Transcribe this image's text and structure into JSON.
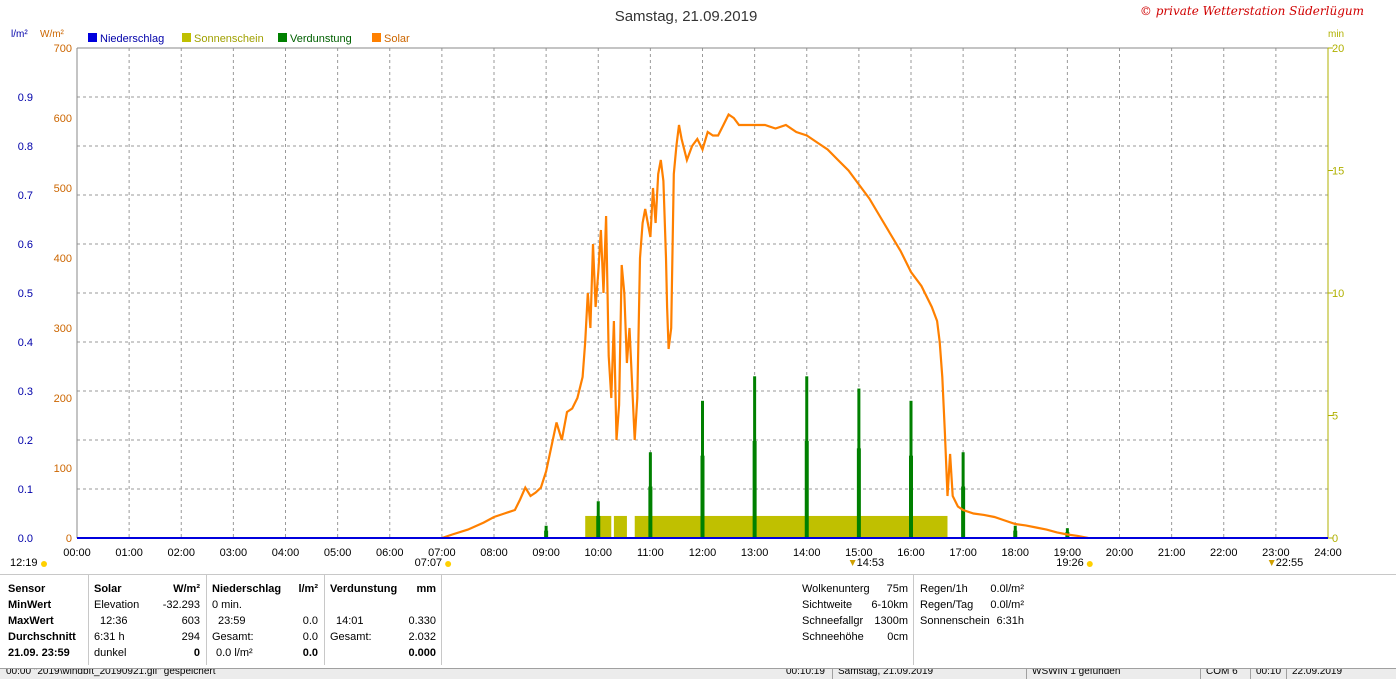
{
  "header": {
    "title": "Samstag, 21.09.2019",
    "copyright": "© private Wetterstation Süderlügum",
    "left_unit": "l/m²",
    "mid_unit": "W/m²",
    "right_unit": "min"
  },
  "legend": [
    {
      "label": "Niederschlag",
      "color": "#0000dd"
    },
    {
      "label": "Sonnenschein",
      "color": "#c0c000"
    },
    {
      "label": "Verdunstung",
      "color": "#008000"
    },
    {
      "label": "Solar",
      "color": "#ff8000"
    }
  ],
  "chart_data": {
    "type": "line",
    "title": "Samstag, 21.09.2019",
    "x_ticks": [
      "00:00",
      "01:00",
      "02:00",
      "03:00",
      "04:00",
      "05:00",
      "06:00",
      "07:00",
      "08:00",
      "09:00",
      "10:00",
      "11:00",
      "12:00",
      "13:00",
      "14:00",
      "15:00",
      "16:00",
      "17:00",
      "18:00",
      "19:00",
      "20:00",
      "21:00",
      "22:00",
      "23:00",
      "24:00"
    ],
    "xlim_hours": [
      0,
      24
    ],
    "y_left": {
      "unit": "l/m²",
      "ticks": [
        "0.0",
        "0.1",
        "0.2",
        "0.3",
        "0.4",
        "0.5",
        "0.6",
        "0.7",
        "0.8",
        "0.9"
      ],
      "range": [
        0,
        1.0
      ]
    },
    "y_solar": {
      "unit": "W/m²",
      "ticks": [
        "0",
        "100",
        "200",
        "300",
        "400",
        "500",
        "600",
        "700"
      ],
      "range": [
        0,
        700
      ]
    },
    "y_right": {
      "unit": "min",
      "ticks": [
        "0",
        "5",
        "10",
        "15",
        "20"
      ],
      "range": [
        0,
        20
      ]
    },
    "grid": true,
    "legend_position": "top-left",
    "solar_series": {
      "name": "Solar",
      "color": "#ff8000",
      "points": [
        [
          7.0,
          0
        ],
        [
          7.2,
          5
        ],
        [
          7.5,
          12
        ],
        [
          7.8,
          22
        ],
        [
          8.0,
          30
        ],
        [
          8.2,
          35
        ],
        [
          8.4,
          40
        ],
        [
          8.5,
          55
        ],
        [
          8.6,
          72
        ],
        [
          8.7,
          60
        ],
        [
          8.8,
          65
        ],
        [
          8.9,
          72
        ],
        [
          9.0,
          95
        ],
        [
          9.1,
          130
        ],
        [
          9.2,
          165
        ],
        [
          9.3,
          140
        ],
        [
          9.4,
          180
        ],
        [
          9.5,
          185
        ],
        [
          9.6,
          200
        ],
        [
          9.7,
          230
        ],
        [
          9.75,
          280
        ],
        [
          9.8,
          350
        ],
        [
          9.85,
          300
        ],
        [
          9.9,
          420
        ],
        [
          9.95,
          330
        ],
        [
          10.0,
          380
        ],
        [
          10.05,
          440
        ],
        [
          10.1,
          350
        ],
        [
          10.15,
          460
        ],
        [
          10.2,
          260
        ],
        [
          10.25,
          200
        ],
        [
          10.3,
          310
        ],
        [
          10.35,
          140
        ],
        [
          10.4,
          190
        ],
        [
          10.45,
          390
        ],
        [
          10.5,
          350
        ],
        [
          10.55,
          250
        ],
        [
          10.6,
          300
        ],
        [
          10.7,
          140
        ],
        [
          10.75,
          200
        ],
        [
          10.8,
          400
        ],
        [
          10.85,
          450
        ],
        [
          10.9,
          470
        ],
        [
          11.0,
          430
        ],
        [
          11.05,
          500
        ],
        [
          11.1,
          450
        ],
        [
          11.15,
          520
        ],
        [
          11.2,
          540
        ],
        [
          11.25,
          510
        ],
        [
          11.3,
          400
        ],
        [
          11.32,
          330
        ],
        [
          11.35,
          270
        ],
        [
          11.4,
          300
        ],
        [
          11.45,
          520
        ],
        [
          11.5,
          560
        ],
        [
          11.55,
          590
        ],
        [
          11.6,
          570
        ],
        [
          11.7,
          540
        ],
        [
          11.8,
          560
        ],
        [
          11.9,
          570
        ],
        [
          12.0,
          555
        ],
        [
          12.1,
          580
        ],
        [
          12.2,
          575
        ],
        [
          12.3,
          575
        ],
        [
          12.4,
          590
        ],
        [
          12.5,
          605
        ],
        [
          12.6,
          600
        ],
        [
          12.7,
          590
        ],
        [
          12.8,
          590
        ],
        [
          12.9,
          590
        ],
        [
          13.0,
          590
        ],
        [
          13.2,
          590
        ],
        [
          13.4,
          585
        ],
        [
          13.6,
          590
        ],
        [
          13.8,
          580
        ],
        [
          14.0,
          575
        ],
        [
          14.2,
          565
        ],
        [
          14.4,
          555
        ],
        [
          14.6,
          540
        ],
        [
          14.8,
          525
        ],
        [
          15.0,
          505
        ],
        [
          15.2,
          485
        ],
        [
          15.4,
          460
        ],
        [
          15.6,
          435
        ],
        [
          15.8,
          410
        ],
        [
          16.0,
          380
        ],
        [
          16.2,
          360
        ],
        [
          16.4,
          330
        ],
        [
          16.5,
          310
        ],
        [
          16.55,
          280
        ],
        [
          16.6,
          230
        ],
        [
          16.65,
          150
        ],
        [
          16.7,
          60
        ],
        [
          16.75,
          120
        ],
        [
          16.8,
          60
        ],
        [
          16.9,
          45
        ],
        [
          17.0,
          40
        ],
        [
          17.2,
          35
        ],
        [
          17.4,
          33
        ],
        [
          17.6,
          30
        ],
        [
          17.8,
          25
        ],
        [
          18.0,
          20
        ],
        [
          18.2,
          18
        ],
        [
          18.4,
          15
        ],
        [
          18.6,
          12
        ],
        [
          18.8,
          8
        ],
        [
          19.0,
          5
        ],
        [
          19.2,
          3
        ],
        [
          19.4,
          0
        ]
      ]
    },
    "sunshine_spans": [
      {
        "from": 9.75,
        "to": 10.25
      },
      {
        "from": 10.3,
        "to": 10.55
      },
      {
        "from": 10.7,
        "to": 16.7
      }
    ],
    "sunshine_level_min": 0.9,
    "evaporation_bars": [
      {
        "x": 9.0,
        "value": 0.5
      },
      {
        "x": 10.0,
        "value": 1.5
      },
      {
        "x": 11.0,
        "value": 3.5
      },
      {
        "x": 12.0,
        "value": 5.6
      },
      {
        "x": 13.0,
        "value": 6.6
      },
      {
        "x": 14.0,
        "value": 6.6
      },
      {
        "x": 15.0,
        "value": 6.1
      },
      {
        "x": 16.0,
        "value": 5.6
      },
      {
        "x": 17.0,
        "value": 3.5
      },
      {
        "x": 18.0,
        "value": 0.5
      },
      {
        "x": 19.0,
        "value": 0.4
      }
    ],
    "markers": [
      {
        "label": "12:19",
        "hour": 0.0,
        "row": 2
      },
      {
        "label": "07:07",
        "hour": 7.12,
        "row": 1
      },
      {
        "label": "14:53",
        "hour": 14.88,
        "row": 1
      },
      {
        "label": "19:26",
        "hour": 19.43,
        "row": 1
      },
      {
        "label": "22:55",
        "hour": 22.92,
        "row": 1
      }
    ]
  },
  "info": {
    "sensor": {
      "title": "Sensor",
      "rows": [
        "MinWert",
        "MaxWert",
        "Durchschnitt",
        "21.09. 23:59"
      ]
    },
    "solar": {
      "title": "Solar",
      "unit": "W/m²",
      "rows": [
        [
          "Elevation",
          "-32.293"
        ],
        [
          "12:36",
          "603"
        ],
        [
          "6:31 h",
          "294"
        ],
        [
          "dunkel",
          "0"
        ]
      ]
    },
    "rain": {
      "title": "Niederschlag",
      "unit": "l/m²",
      "rows": [
        [
          "0 min.",
          ""
        ],
        [
          "23:59",
          "0.0"
        ],
        [
          "Gesamt:",
          "0.0"
        ],
        [
          "0.0 l/m²",
          "0.0"
        ]
      ]
    },
    "evap": {
      "title": "Verdunstung",
      "unit": "mm",
      "rows": [
        [
          "",
          ""
        ],
        [
          "14:01",
          "0.330"
        ],
        [
          "Gesamt:",
          "2.032"
        ],
        [
          "",
          "0.000"
        ]
      ]
    },
    "weather": [
      [
        "Wolkenunterg",
        "75m"
      ],
      [
        "Sichtweite",
        "6-10km"
      ],
      [
        "Schneefallgr",
        "1300m"
      ],
      [
        "Schneehöhe",
        "0cm"
      ]
    ],
    "rainstats": [
      [
        "Regen/1h",
        "0.0l/m²"
      ],
      [
        "Regen/Tag",
        "0.0l/m²"
      ],
      [
        "Sonnenschein",
        "6:31h"
      ]
    ]
  },
  "status": {
    "c1": "00:00 \"2019\\windbft_20190921.gif\" gespeichert",
    "c2": "00:10:19",
    "c3": "Samstag, 21.09.2019",
    "c4": "WSWIN 1 gefunden",
    "c5": "COM 6",
    "c6": "00:10",
    "c7": "22.09.2019"
  }
}
